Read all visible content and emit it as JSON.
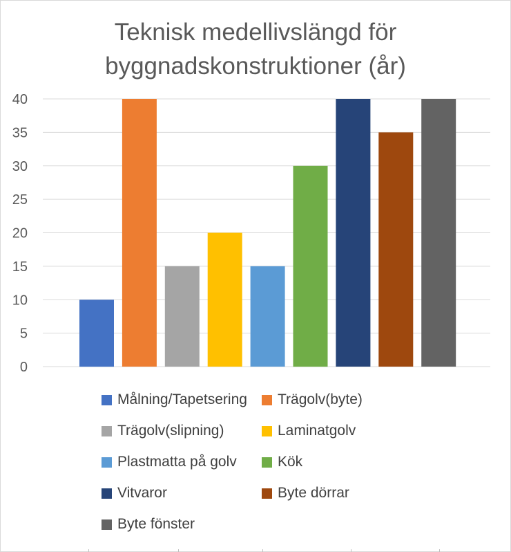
{
  "chart_data": {
    "type": "bar",
    "title": "Teknisk medellivslängd för byggnadskonstruktioner (år)",
    "title_lines": [
      "Teknisk medellivslängd för",
      "byggnadskonstruktioner (år)"
    ],
    "xlabel": "",
    "ylabel": "",
    "ylim": [
      0,
      40
    ],
    "yticks": [
      0,
      5,
      10,
      15,
      20,
      25,
      30,
      35,
      40
    ],
    "grid": true,
    "legend_position": "bottom",
    "categories": [
      "Målning/Tapetsering",
      "Trägolv(byte)",
      "Trägolv(slipning)",
      "Laminatgolv",
      "Plastmatta på golv",
      "Kök",
      "Vitvaror",
      "Byte dörrar",
      "Byte fönster"
    ],
    "values": [
      10,
      40,
      15,
      20,
      15,
      30,
      40,
      35,
      40
    ],
    "colors": [
      "#4472c4",
      "#ed7d31",
      "#a5a5a5",
      "#ffc000",
      "#5b9bd5",
      "#70ad47",
      "#264478",
      "#9e480e",
      "#636363"
    ]
  }
}
